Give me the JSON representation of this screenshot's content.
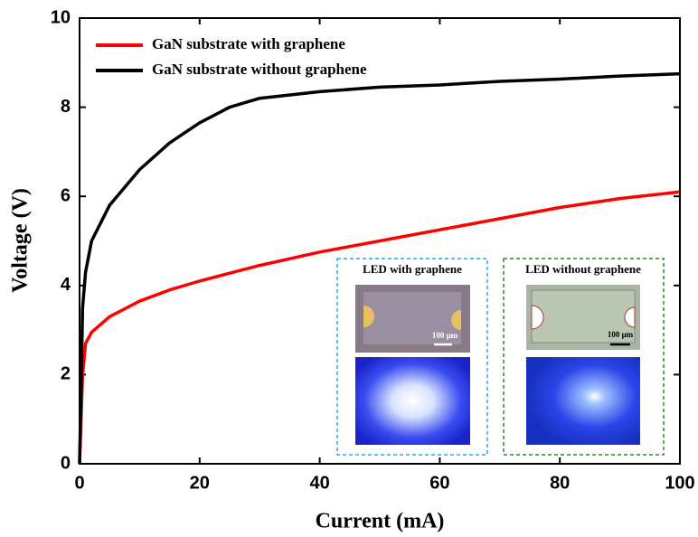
{
  "chart_data": {
    "type": "line",
    "xlabel": "Current (mA)",
    "ylabel": "Voltage (V)",
    "xlim": [
      0,
      100
    ],
    "xticks": [
      0,
      20,
      40,
      60,
      80,
      100
    ],
    "ylim": [
      0,
      10
    ],
    "yticks": [
      0,
      2,
      4,
      6,
      8,
      10
    ],
    "legend": "upper left",
    "series": [
      {
        "name": "GaN substrate with graphene",
        "color": "#ff0000",
        "x": [
          0,
          0.5,
          1,
          2,
          5,
          10,
          15,
          20,
          30,
          40,
          50,
          60,
          70,
          80,
          90,
          100
        ],
        "values": [
          0,
          2,
          2.7,
          2.95,
          3.3,
          3.65,
          3.9,
          4.1,
          4.45,
          4.75,
          5.0,
          5.25,
          5.5,
          5.75,
          5.95,
          6.1
        ]
      },
      {
        "name": "GaN substrate without graphene",
        "color": "#000000",
        "x": [
          0,
          0.3,
          0.5,
          1,
          2,
          5,
          10,
          15,
          20,
          25,
          30,
          40,
          50,
          60,
          70,
          80,
          90,
          100
        ],
        "values": [
          0,
          2,
          3.5,
          4.3,
          5.0,
          5.8,
          6.6,
          7.2,
          7.65,
          8.0,
          8.2,
          8.35,
          8.45,
          8.5,
          8.58,
          8.63,
          8.7,
          8.75
        ]
      }
    ],
    "insets": [
      {
        "title": "LED with graphene",
        "scale_bar": "100 μm"
      },
      {
        "title": "LED without graphene",
        "scale_bar": "100 μm"
      }
    ]
  }
}
